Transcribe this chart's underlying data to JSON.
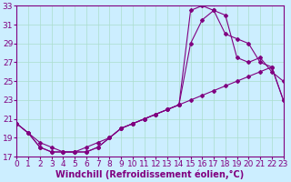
{
  "background_color": "#cceeff",
  "line_color": "#800080",
  "grid_color": "#aaddcc",
  "xlabel": "Windchill (Refroidissement éolien,°C)",
  "xlim": [
    0,
    23
  ],
  "ylim": [
    17,
    33
  ],
  "yticks": [
    17,
    19,
    21,
    23,
    25,
    27,
    29,
    31,
    33
  ],
  "xticks": [
    0,
    1,
    2,
    3,
    4,
    5,
    6,
    7,
    8,
    9,
    10,
    11,
    12,
    13,
    14,
    15,
    16,
    17,
    18,
    19,
    20,
    21,
    22,
    23
  ],
  "curve1_x": [
    0,
    1,
    2,
    3,
    4,
    5,
    6,
    7,
    8,
    9,
    10,
    11,
    12,
    13,
    14,
    15,
    16,
    17,
    18,
    19,
    20,
    21,
    22,
    23
  ],
  "curve1_y": [
    20.5,
    19.5,
    18.0,
    17.5,
    17.5,
    17.5,
    17.5,
    18.0,
    19.0,
    20.0,
    20.5,
    21.0,
    21.5,
    22.0,
    22.5,
    32.5,
    33.0,
    32.5,
    30.0,
    29.5,
    29.0,
    27.0,
    26.5,
    23.0
  ],
  "curve2_x": [
    0,
    1,
    2,
    3,
    4,
    5,
    6,
    7,
    8,
    9,
    10,
    11,
    12,
    13,
    14,
    15,
    16,
    17,
    18,
    19,
    20,
    21,
    22,
    23
  ],
  "curve2_y": [
    20.5,
    19.5,
    18.0,
    17.5,
    17.5,
    17.5,
    17.5,
    18.0,
    19.0,
    20.0,
    20.5,
    21.0,
    21.5,
    22.0,
    22.5,
    29.0,
    31.5,
    32.5,
    32.0,
    27.5,
    27.0,
    27.5,
    26.0,
    25.0
  ],
  "curve3_x": [
    0,
    1,
    2,
    3,
    4,
    5,
    6,
    7,
    8,
    9,
    10,
    11,
    12,
    13,
    14,
    15,
    16,
    17,
    18,
    19,
    20,
    21,
    22,
    23
  ],
  "curve3_y": [
    20.5,
    19.5,
    18.5,
    18.0,
    17.5,
    17.5,
    18.0,
    18.5,
    19.0,
    20.0,
    20.5,
    21.0,
    21.5,
    22.0,
    22.5,
    23.0,
    23.5,
    24.0,
    24.5,
    25.0,
    25.5,
    26.0,
    26.5,
    23.0
  ],
  "xlabel_fontsize": 7,
  "tick_fontsize": 6.5,
  "marker": "D",
  "marker_size": 2.0,
  "linewidth": 0.8
}
